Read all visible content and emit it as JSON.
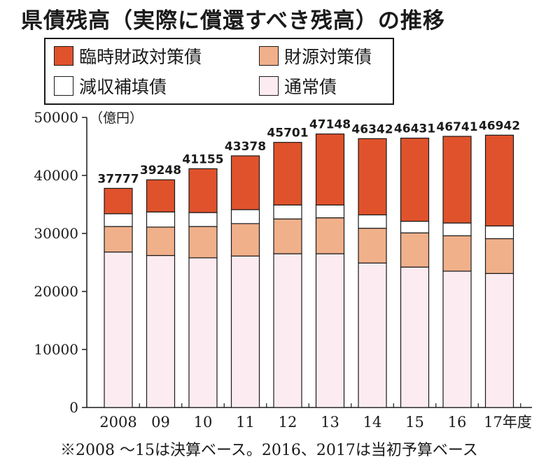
{
  "title": "県債残高（実際に償還すべき残高）の推移",
  "legend": [
    {
      "label": "臨時財政対策債",
      "color": "#e0522b"
    },
    {
      "label": "財源対策債",
      "color": "#f0b08a"
    },
    {
      "label": "減収補填債",
      "color": "#ffffff"
    },
    {
      "label": "通常債",
      "color": "#fcecf1"
    }
  ],
  "note": "※2008 ～15は決算ベース。2016、2017は当初予算ベース",
  "chart_data": {
    "type": "bar",
    "stacked": true,
    "unit_label": "（億円）",
    "categories": [
      "2008",
      "09",
      "10",
      "11",
      "12",
      "13",
      "14",
      "15",
      "16",
      "17年度"
    ],
    "totals": [
      "37777",
      "39248",
      "41155",
      "43378",
      "45701",
      "47148",
      "46342",
      "46431",
      "46741",
      "46942"
    ],
    "series": [
      {
        "name": "通常債",
        "color": "#fcecf1",
        "values": [
          26800,
          26200,
          25800,
          26100,
          26500,
          26500,
          24900,
          24200,
          23500,
          23100
        ]
      },
      {
        "name": "財源対策債",
        "color": "#f0b08a",
        "values": [
          4400,
          4900,
          5400,
          5600,
          6000,
          6200,
          6000,
          5900,
          6100,
          6000
        ]
      },
      {
        "name": "減収補填債",
        "color": "#ffffff",
        "values": [
          2200,
          2600,
          2400,
          2400,
          2400,
          2200,
          2300,
          2000,
          2200,
          2200
        ]
      },
      {
        "name": "臨時財政対策債",
        "color": "#e0522b",
        "values": [
          4377,
          5548,
          7555,
          9278,
          10801,
          12248,
          13142,
          14331,
          14941,
          15642
        ]
      }
    ],
    "yticks": [
      "0",
      "10000",
      "20000",
      "30000",
      "40000",
      "50000"
    ],
    "ylim": [
      0,
      50000
    ],
    "grid": false
  }
}
